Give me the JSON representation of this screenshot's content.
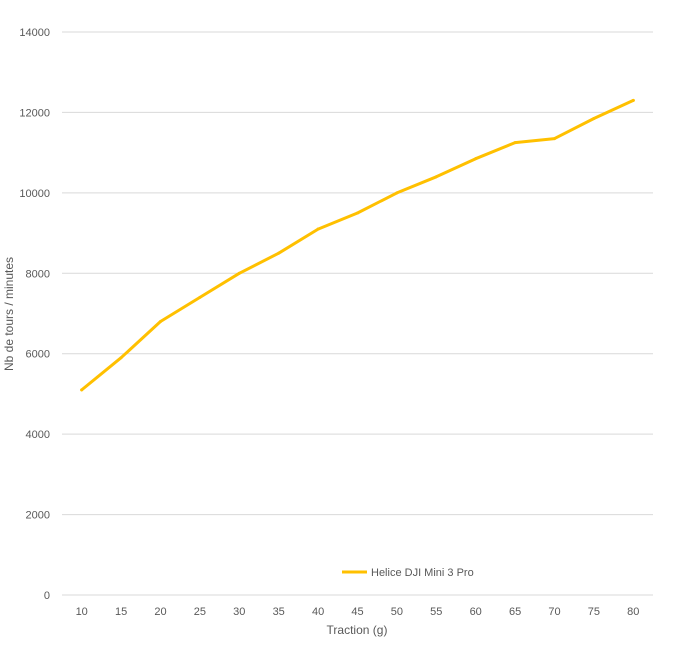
{
  "chart_data": {
    "type": "line",
    "title": "",
    "xlabel": "Traction (g)",
    "ylabel": "Nb de tours / minutes",
    "categories": [
      "10",
      "15",
      "20",
      "25",
      "30",
      "35",
      "40",
      "45",
      "50",
      "55",
      "60",
      "65",
      "70",
      "75",
      "80"
    ],
    "ylim": [
      0,
      14000
    ],
    "yticks": [
      "0",
      "2000",
      "4000",
      "6000",
      "8000",
      "10000",
      "12000",
      "14000"
    ],
    "grid": true,
    "legend_position": "bottom",
    "series": [
      {
        "name": "Helice DJI Mini 3 Pro",
        "color": "#FFC000",
        "values": [
          5100,
          5900,
          6800,
          7400,
          8000,
          8500,
          9100,
          9500,
          10000,
          10400,
          10850,
          11250,
          11350,
          11850,
          12300
        ]
      }
    ]
  }
}
